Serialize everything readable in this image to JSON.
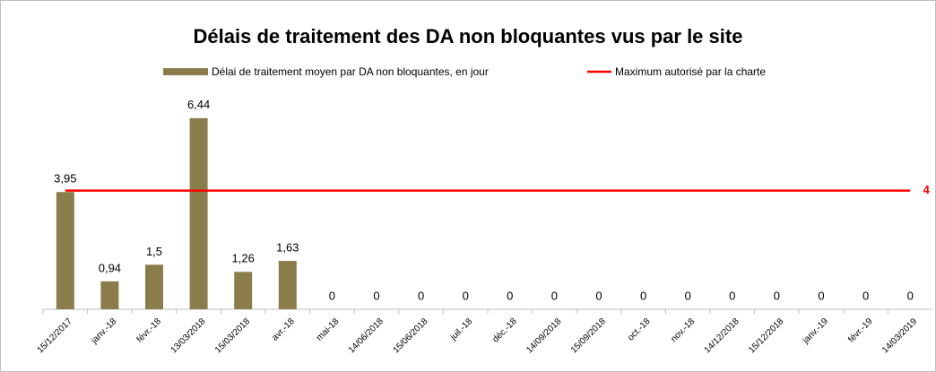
{
  "chart_data": {
    "type": "bar",
    "title": "Délais de traitement des DA non bloquantes vus par le site",
    "categories": [
      "15/12/2017",
      "janv.-18",
      "févr.-18",
      "13/03/2018",
      "15/03/2018",
      "avr.-18",
      "mai-18",
      "14/06/2018",
      "15/06/2018",
      "juil.-18",
      "déc.-18",
      "14/09/2018",
      "15/09/2018",
      "oct.-18",
      "nov.-18",
      "14/12/2018",
      "15/12/2018",
      "janv.-19",
      "févr.-19",
      "14/03/2019"
    ],
    "series": [
      {
        "name": "Délai de traitement moyen par DA non bloquantes, en jour",
        "type": "bar",
        "color": "#8b7d4b",
        "values": [
          3.95,
          0.94,
          1.5,
          6.44,
          1.26,
          1.63,
          0,
          0,
          0,
          0,
          0,
          0,
          0,
          0,
          0,
          0,
          0,
          0,
          0,
          0
        ],
        "value_labels": [
          "3,95",
          "0,94",
          "1,5",
          "6,44",
          "1,26",
          "1,63",
          "0",
          "0",
          "0",
          "0",
          "0",
          "0",
          "0",
          "0",
          "0",
          "0",
          "0",
          "0",
          "0",
          "0"
        ]
      },
      {
        "name": "Maximum autorisé par la charte",
        "type": "line",
        "color": "#ff0000",
        "values": [
          4,
          4,
          4,
          4,
          4,
          4,
          4,
          4,
          4,
          4,
          4,
          4,
          4,
          4,
          4,
          4,
          4,
          4,
          4,
          4
        ]
      }
    ],
    "ylim": [
      0,
      7.4
    ],
    "grid": false
  }
}
